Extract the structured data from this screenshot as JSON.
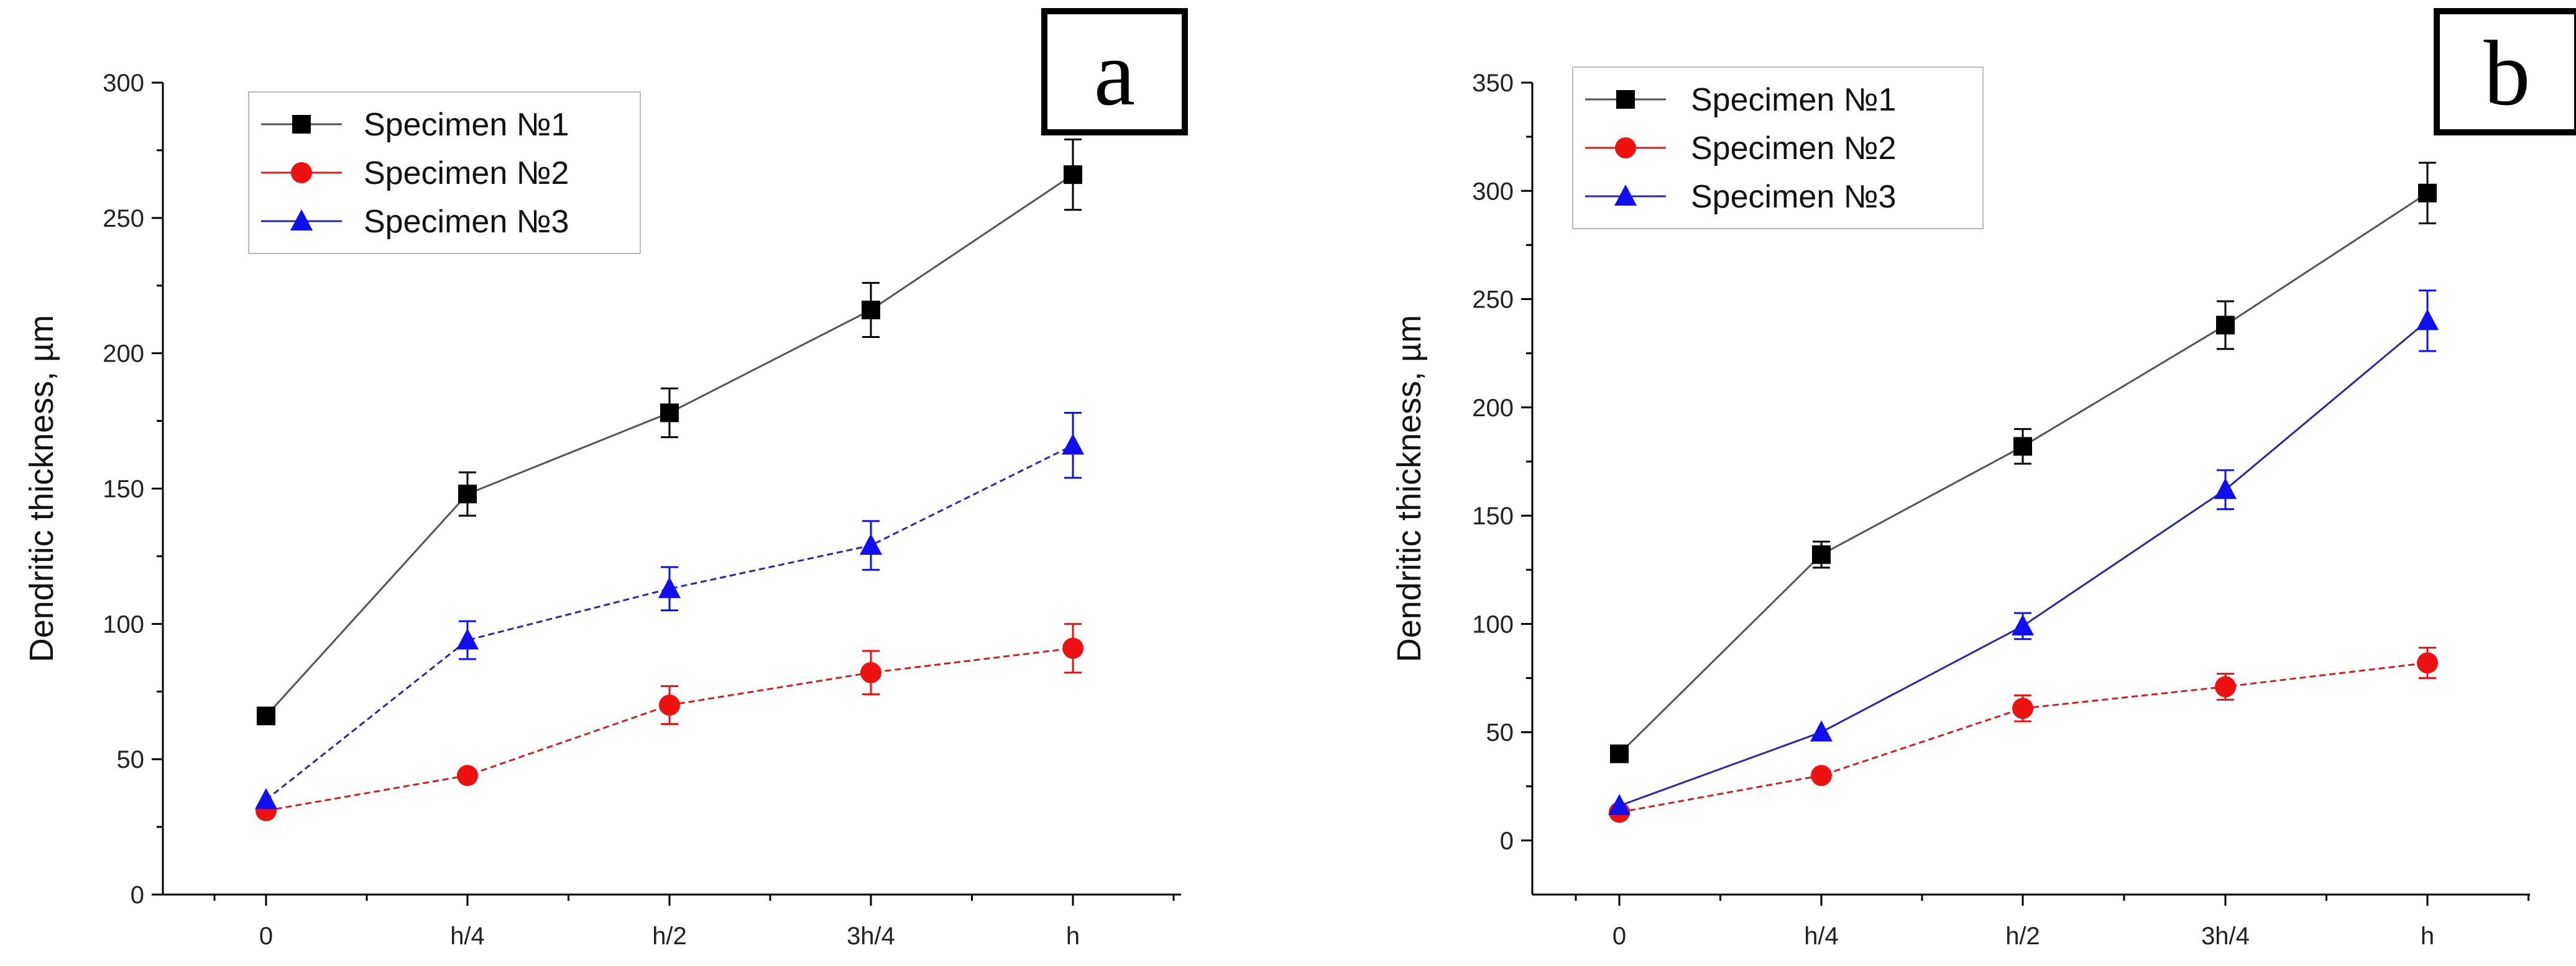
{
  "chart_data": [
    {
      "type": "line",
      "panel_label": "a",
      "categories": [
        "0",
        "h/4",
        "h/2",
        "3h/4",
        "h"
      ],
      "ylabel": "Dendritic thickness, µm",
      "xlabel": "",
      "ylim": [
        0,
        300
      ],
      "yticks": [
        0,
        50,
        100,
        150,
        200,
        250,
        300
      ],
      "legend_position": "top-left",
      "series": [
        {
          "name": "Specimen №1",
          "marker": "square",
          "color": "#000000",
          "line_color": "#555555",
          "dashed": false,
          "values": [
            66,
            148,
            178,
            216,
            266
          ],
          "errors": [
            0,
            8,
            9,
            10,
            13
          ]
        },
        {
          "name": "Specimen №2",
          "marker": "circle",
          "color": "#ee1111",
          "line_color": "#cc2222",
          "dashed": true,
          "values": [
            31,
            44,
            70,
            82,
            91
          ],
          "errors": [
            0,
            0,
            7,
            8,
            9
          ]
        },
        {
          "name": "Specimen №3",
          "marker": "triangle",
          "color": "#1010ee",
          "line_color": "#2a2aa0",
          "dashed": true,
          "values": [
            35,
            94,
            113,
            129,
            166
          ],
          "errors": [
            0,
            7,
            8,
            9,
            12
          ]
        }
      ]
    },
    {
      "type": "line",
      "panel_label": "b",
      "categories": [
        "0",
        "h/4",
        "h/2",
        "3h/4",
        "h"
      ],
      "ylabel": "Dendritic thickness, µm",
      "xlabel": "",
      "ylim": [
        -25,
        350
      ],
      "yticks": [
        0,
        50,
        100,
        150,
        200,
        250,
        300,
        350
      ],
      "legend_position": "top-left",
      "series": [
        {
          "name": "Specimen №1",
          "marker": "square",
          "color": "#000000",
          "line_color": "#555555",
          "dashed": false,
          "values": [
            40,
            132,
            182,
            238,
            299
          ],
          "errors": [
            0,
            6,
            8,
            11,
            14
          ]
        },
        {
          "name": "Specimen №2",
          "marker": "circle",
          "color": "#ee1111",
          "line_color": "#cc2222",
          "dashed": true,
          "values": [
            13,
            30,
            61,
            71,
            82
          ],
          "errors": [
            0,
            0,
            6,
            6,
            7
          ]
        },
        {
          "name": "Specimen №3",
          "marker": "triangle",
          "color": "#1010ee",
          "line_color": "#2a2aa0",
          "dashed": false,
          "values": [
            16,
            50,
            99,
            162,
            240
          ],
          "errors": [
            0,
            0,
            6,
            9,
            14
          ]
        }
      ]
    }
  ]
}
